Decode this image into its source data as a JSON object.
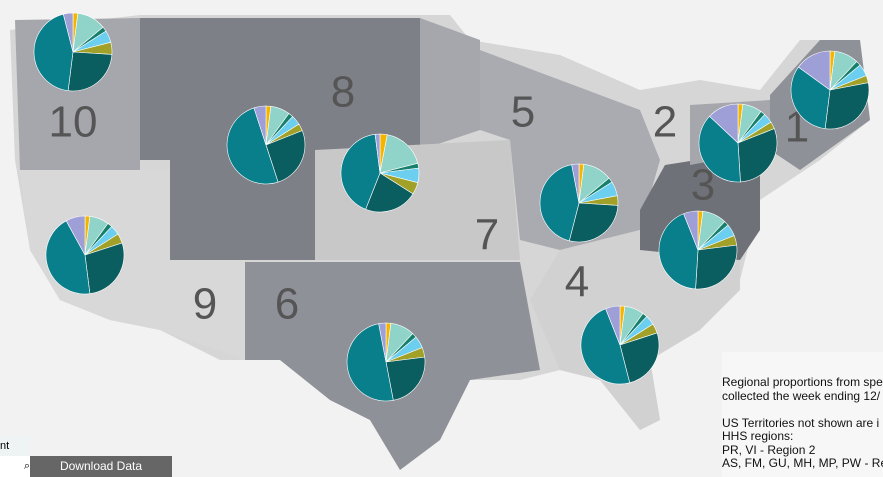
{
  "slice_colors": [
    "#f4b400",
    "#8fd3c9",
    "#17806d",
    "#6dcff0",
    "#a1a12a",
    "#0b5e5f",
    "#0a7f8c",
    "#9e9fd6"
  ],
  "regions": [
    {
      "label": "10",
      "values": [
        2,
        12,
        2,
        5,
        5,
        26,
        44,
        4
      ]
    },
    {
      "label": "8",
      "values": [
        2,
        8,
        2,
        4,
        3,
        26,
        50,
        5
      ]
    },
    {
      "label": "7",
      "values": [
        3,
        18,
        2,
        6,
        5,
        22,
        42,
        2
      ]
    },
    {
      "label": "5",
      "values": [
        2,
        12,
        2,
        6,
        4,
        28,
        43,
        3
      ]
    },
    {
      "label": "2",
      "values": [
        2,
        8,
        2,
        4,
        3,
        30,
        38,
        13
      ]
    },
    {
      "label": "1",
      "values": [
        2,
        10,
        2,
        5,
        3,
        30,
        33,
        15
      ]
    },
    {
      "label": "3",
      "values": [
        2,
        10,
        2,
        5,
        4,
        28,
        43,
        6
      ]
    },
    {
      "label": "4",
      "values": [
        2,
        8,
        2,
        4,
        4,
        26,
        48,
        6
      ]
    },
    {
      "label": "6",
      "values": [
        2,
        10,
        2,
        5,
        4,
        24,
        50,
        3
      ]
    },
    {
      "label": "9",
      "values": [
        2,
        8,
        2,
        4,
        4,
        28,
        44,
        8
      ]
    }
  ],
  "note": [
    "Regional proportions from spe",
    "collected the week ending 12/",
    "",
    "US Territories not shown are i",
    "HHS regions:",
    "PR, VI - Region 2",
    "AS, FM, GU, MH, MP, PW - Re"
  ],
  "search_label": "nt",
  "download": "Download Data"
}
